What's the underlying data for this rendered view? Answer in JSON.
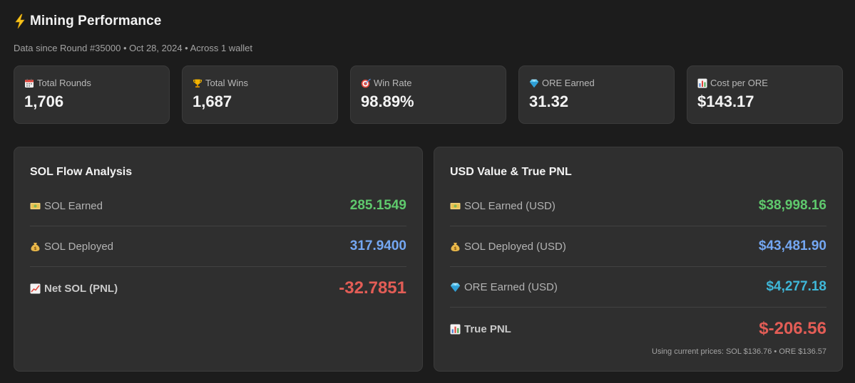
{
  "header": {
    "title": "Mining Performance",
    "subtitle": "Data since Round #35000 • Oct 28, 2024 • Across 1 wallet",
    "icon": "lightning-bolt-icon"
  },
  "stats": [
    {
      "label": "Total Rounds",
      "value": "1,706",
      "icon": "calendar-icon"
    },
    {
      "label": "Total Wins",
      "value": "1,687",
      "icon": "trophy-icon"
    },
    {
      "label": "Win Rate",
      "value": "98.89%",
      "icon": "target-icon"
    },
    {
      "label": "ORE Earned",
      "value": "31.32",
      "icon": "gem-icon"
    },
    {
      "label": "Cost per ORE",
      "value": "$143.17",
      "icon": "bar-chart-icon"
    }
  ],
  "sol_flow": {
    "title": "SOL Flow Analysis",
    "rows": [
      {
        "label": "SOL Earned",
        "value": "285.1549",
        "icon": "banknote-icon",
        "color": "#5fc96d"
      },
      {
        "label": "SOL Deployed",
        "value": "317.9400",
        "icon": "money-bag-icon",
        "color": "#74a7f2"
      },
      {
        "label": "Net SOL (PNL)",
        "value": "-32.7851",
        "icon": "trend-chart-icon",
        "color": "#e35d56"
      }
    ]
  },
  "usd_value": {
    "title": "USD Value & True PNL",
    "rows": [
      {
        "label": "SOL Earned (USD)",
        "value": "$38,998.16",
        "icon": "banknote-icon",
        "color": "#5fc96d"
      },
      {
        "label": "SOL Deployed (USD)",
        "value": "$43,481.90",
        "icon": "money-bag-icon",
        "color": "#74a7f2"
      },
      {
        "label": "ORE Earned (USD)",
        "value": "$4,277.18",
        "icon": "gem-icon",
        "color": "#3fb7d8"
      },
      {
        "label": "True PNL",
        "value": "$-206.56",
        "icon": "bar-chart-icon",
        "color": "#e35d56"
      }
    ],
    "footnote": "Using current prices: SOL $136.76 • ORE $136.57"
  },
  "colors": {
    "background": "#1c1c1c",
    "card": "#2f2f2f",
    "positive": "#5fc96d",
    "deployed": "#74a7f2",
    "negative": "#e35d56",
    "ore": "#3fb7d8"
  }
}
